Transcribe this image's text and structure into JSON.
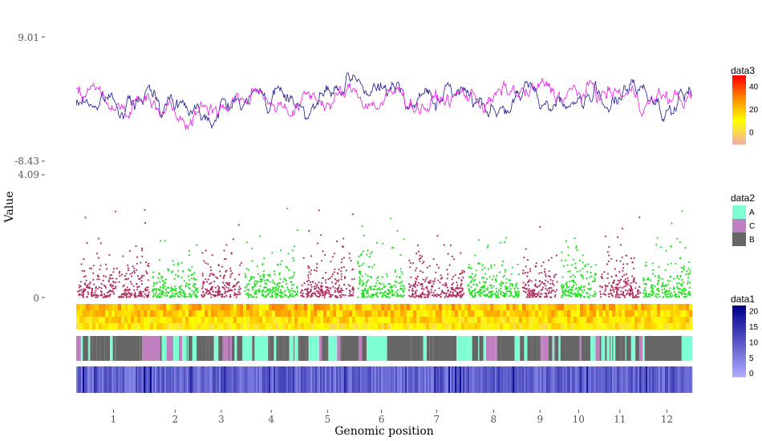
{
  "chart_data": {
    "type": "genome-track",
    "xlabel": "Genomic position",
    "ylabel": "Value",
    "chromosomes": [
      "1",
      "2",
      "3",
      "4",
      "5",
      "6",
      "7",
      "8",
      "9",
      "10",
      "11",
      "12"
    ],
    "chrom_boundaries": [
      0.0,
      0.121,
      0.2,
      0.271,
      0.362,
      0.454,
      0.537,
      0.633,
      0.722,
      0.784,
      0.847,
      0.918,
      1.0
    ],
    "line_track": {
      "ylim": [
        -8.43,
        9.01
      ],
      "y_ticks": [
        "9.01",
        "-8.43"
      ],
      "series": [
        {
          "color": "#1a1a8c"
        },
        {
          "color": "#e619e6"
        }
      ]
    },
    "scatter_track": {
      "ylim": [
        0,
        4.09
      ],
      "y_ticks": [
        "4.09",
        "0"
      ],
      "colors": {
        "odd": "#b03060",
        "even": "#22e022"
      }
    },
    "heat_track": {
      "gradient": [
        "#f2b0a0",
        "#ffff00",
        "#ff8c00",
        "#ff0000"
      ]
    },
    "category_track": {
      "categories": [
        "A",
        "C",
        "B"
      ],
      "colors": [
        "#7fffd4",
        "#c080c0",
        "#666666"
      ]
    },
    "blue_track": {
      "gradient": [
        "#aaaaff",
        "#00008b"
      ]
    },
    "legends": {
      "data3": {
        "title": "data3",
        "ticks": [
          "40",
          "20",
          "0"
        ],
        "tick_values": [
          40,
          20,
          0
        ],
        "range": [
          -10,
          50
        ]
      },
      "data2": {
        "title": "data2",
        "labels": [
          "A",
          "C",
          "B"
        ]
      },
      "data1": {
        "title": "data1",
        "ticks": [
          "20",
          "15",
          "10",
          "5",
          "0"
        ],
        "tick_values": [
          20,
          15,
          10,
          5,
          0
        ],
        "range": [
          -1,
          22
        ]
      }
    }
  }
}
